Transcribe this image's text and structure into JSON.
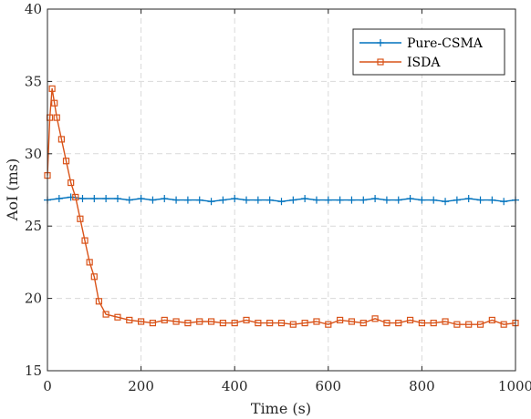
{
  "chart_data": {
    "type": "line",
    "xlabel": "Time (s)",
    "ylabel": "AoI (ms)",
    "xlim": [
      0,
      1000
    ],
    "ylim": [
      15,
      40
    ],
    "xticks": [
      0,
      200,
      400,
      600,
      800,
      1000
    ],
    "yticks": [
      15,
      20,
      25,
      30,
      35,
      40
    ],
    "grid": true,
    "legend_position": "top-right",
    "series": [
      {
        "name": "Pure-CSMA",
        "color": "#0072BD",
        "marker": "plus",
        "x": [
          0,
          25,
          50,
          75,
          100,
          125,
          150,
          175,
          200,
          225,
          250,
          275,
          300,
          325,
          350,
          375,
          400,
          425,
          450,
          475,
          500,
          525,
          550,
          575,
          600,
          625,
          650,
          675,
          700,
          725,
          750,
          775,
          800,
          825,
          850,
          875,
          900,
          925,
          950,
          975,
          1000
        ],
        "values": [
          26.8,
          26.9,
          27.0,
          26.9,
          26.9,
          26.9,
          26.9,
          26.8,
          26.9,
          26.8,
          26.9,
          26.8,
          26.8,
          26.8,
          26.7,
          26.8,
          26.9,
          26.8,
          26.8,
          26.8,
          26.7,
          26.8,
          26.9,
          26.8,
          26.8,
          26.8,
          26.8,
          26.8,
          26.9,
          26.8,
          26.8,
          26.9,
          26.8,
          26.8,
          26.7,
          26.8,
          26.9,
          26.8,
          26.8,
          26.7,
          26.8
        ]
      },
      {
        "name": "ISDA",
        "color": "#D95319",
        "marker": "square",
        "x": [
          0,
          5,
          10,
          15,
          20,
          30,
          40,
          50,
          60,
          70,
          80,
          90,
          100,
          110,
          125,
          150,
          175,
          200,
          225,
          250,
          275,
          300,
          325,
          350,
          375,
          400,
          425,
          450,
          475,
          500,
          525,
          550,
          575,
          600,
          625,
          650,
          675,
          700,
          725,
          750,
          775,
          800,
          825,
          850,
          875,
          900,
          925,
          950,
          975,
          1000
        ],
        "values": [
          28.5,
          32.5,
          34.5,
          33.5,
          32.5,
          31.0,
          29.5,
          28.0,
          27.0,
          25.5,
          24.0,
          22.5,
          21.5,
          19.8,
          18.9,
          18.7,
          18.5,
          18.4,
          18.3,
          18.5,
          18.4,
          18.3,
          18.4,
          18.4,
          18.3,
          18.3,
          18.5,
          18.3,
          18.3,
          18.3,
          18.2,
          18.3,
          18.4,
          18.2,
          18.5,
          18.4,
          18.3,
          18.6,
          18.3,
          18.3,
          18.5,
          18.3,
          18.3,
          18.4,
          18.2,
          18.2,
          18.2,
          18.5,
          18.2,
          18.3
        ]
      }
    ]
  }
}
